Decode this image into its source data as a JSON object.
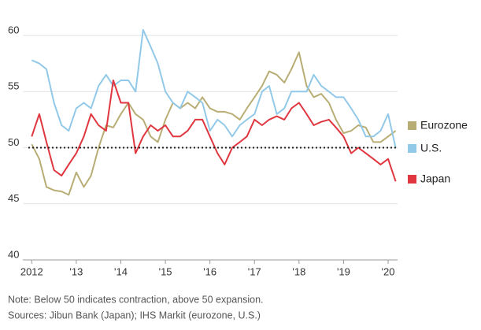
{
  "chart_data": {
    "type": "line",
    "x": [
      2012,
      2012.17,
      2012.33,
      2012.5,
      2012.67,
      2012.83,
      2013,
      2013.17,
      2013.33,
      2013.5,
      2013.67,
      2013.83,
      2014,
      2014.17,
      2014.33,
      2014.5,
      2014.67,
      2014.83,
      2015,
      2015.17,
      2015.33,
      2015.5,
      2015.67,
      2015.83,
      2016,
      2016.17,
      2016.33,
      2016.5,
      2016.67,
      2016.83,
      2017,
      2017.17,
      2017.33,
      2017.5,
      2017.67,
      2017.83,
      2018,
      2018.17,
      2018.33,
      2018.5,
      2018.67,
      2018.83,
      2019,
      2019.17,
      2019.33,
      2019.5,
      2019.67,
      2019.83,
      2020,
      2020.17
    ],
    "series": [
      {
        "name": "Eurozone",
        "color": "#b8ad74",
        "values": [
          50.3,
          49,
          46.5,
          46.2,
          46.1,
          45.8,
          47.8,
          46.5,
          47.5,
          50,
          52,
          51.8,
          53,
          54,
          53,
          52.5,
          51,
          50.5,
          52.5,
          54,
          53.5,
          54,
          53.5,
          54.5,
          53.5,
          53.2,
          53.2,
          53,
          52.5,
          53.5,
          54.5,
          55.5,
          56.8,
          56.5,
          55.8,
          57,
          58.5,
          55.5,
          54.5,
          54.8,
          54,
          52.5,
          51.3,
          51.5,
          52,
          51.8,
          50.5,
          50.5,
          51,
          51.5
        ]
      },
      {
        "name": "U.S.",
        "color": "#92c9e8",
        "values": [
          57.8,
          57.5,
          57,
          54,
          52,
          51.5,
          53.5,
          54,
          53.5,
          55.5,
          56.5,
          55.5,
          56,
          56,
          55,
          60.5,
          59,
          57.5,
          55,
          54,
          53.5,
          55,
          54.5,
          54,
          51.5,
          52.5,
          52,
          51,
          52,
          52.5,
          53,
          55,
          55.5,
          53,
          53.5,
          55,
          55,
          55,
          56.5,
          55.5,
          55,
          54.5,
          54.5,
          53.5,
          52.5,
          51,
          51,
          51.5,
          53,
          50
        ]
      },
      {
        "name": "Japan",
        "color": "#e0363f",
        "values": [
          51,
          53,
          50.5,
          48,
          47.5,
          48.5,
          49.5,
          51,
          53,
          52,
          51.5,
          56,
          54,
          54,
          49.5,
          51,
          52,
          51.5,
          52,
          51,
          51,
          51.5,
          52.5,
          52.5,
          51,
          49.5,
          48.5,
          50,
          50.5,
          51,
          52.5,
          52,
          52.5,
          52.8,
          52.5,
          53.5,
          54,
          53,
          52,
          52.3,
          52.5,
          51.8,
          51,
          49.5,
          50,
          49.5,
          49,
          48.5,
          49,
          47
        ]
      }
    ],
    "xlim": [
      2011.8,
      2020.3
    ],
    "xticks": [
      {
        "value": 2012,
        "label": "2012"
      },
      {
        "value": 2013,
        "label": "'13"
      },
      {
        "value": 2014,
        "label": "'14"
      },
      {
        "value": 2015,
        "label": "'15"
      },
      {
        "value": 2016,
        "label": "'16"
      },
      {
        "value": 2017,
        "label": "'17"
      },
      {
        "value": 2018,
        "label": "'18"
      },
      {
        "value": 2019,
        "label": "'19"
      },
      {
        "value": 2020,
        "label": "'20"
      }
    ],
    "ylim": [
      40,
      60
    ],
    "yticks": [
      40,
      45,
      50,
      55,
      60
    ],
    "grid": true,
    "reference_line": 50,
    "legend": "right",
    "notes": [
      "Note: Below 50 indicates contraction, above 50 expansion.",
      "Sources: Jibun Bank (Japan); IHS Markit (eurozone, U.S.)"
    ]
  }
}
